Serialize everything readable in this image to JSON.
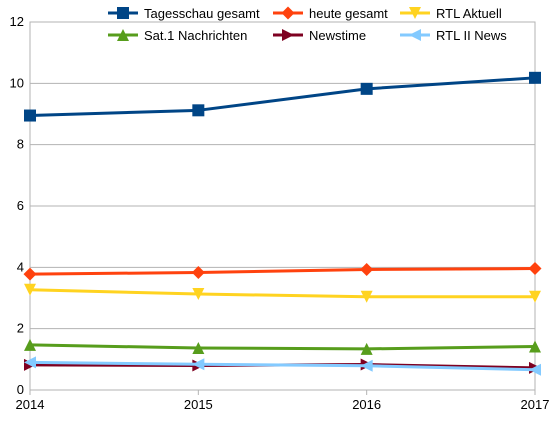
{
  "chart_data": {
    "type": "line",
    "title": "",
    "xlabel": "",
    "ylabel": "",
    "x": [
      "2014",
      "2015",
      "2016",
      "2017"
    ],
    "ylim": [
      0,
      12
    ],
    "yticks": [
      0,
      2,
      4,
      6,
      8,
      10,
      12
    ],
    "grid": "horizontal",
    "legend_position": "top",
    "series": [
      {
        "name": "Tagesschau gesamt",
        "color": "#004586",
        "marker": "square",
        "values": [
          8.95,
          9.12,
          9.82,
          10.18
        ]
      },
      {
        "name": "heute gesamt",
        "color": "#ff420e",
        "marker": "diamond",
        "values": [
          3.78,
          3.83,
          3.93,
          3.96
        ]
      },
      {
        "name": "RTL Aktuell",
        "color": "#ffd320",
        "marker": "triangle-down",
        "values": [
          3.27,
          3.13,
          3.04,
          3.04
        ]
      },
      {
        "name": "Sat.1 Nachrichten",
        "color": "#579d1c",
        "marker": "triangle-up",
        "values": [
          1.47,
          1.37,
          1.34,
          1.42
        ]
      },
      {
        "name": "Newstime",
        "color": "#7e0021",
        "marker": "triangle-right",
        "values": [
          0.82,
          0.8,
          0.83,
          0.72
        ]
      },
      {
        "name": "RTL II News",
        "color": "#83caff",
        "marker": "triangle-left",
        "values": [
          0.9,
          0.84,
          0.79,
          0.66
        ]
      }
    ]
  }
}
